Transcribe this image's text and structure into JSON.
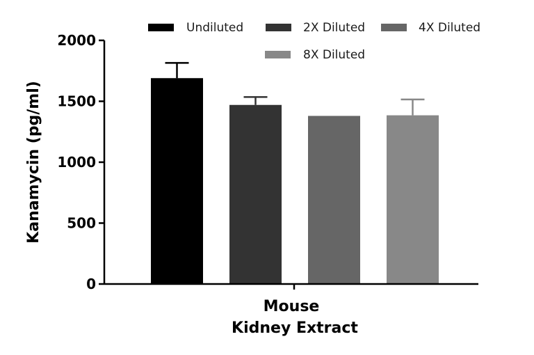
{
  "chart_data": {
    "type": "bar",
    "ylabel": "Kanamycin (pg/ml)",
    "xlabel_lines": [
      "Mouse",
      "Kidney Extract"
    ],
    "ylim": [
      0,
      2000
    ],
    "yticks": [
      0,
      500,
      1000,
      1500,
      2000
    ],
    "category": "Mouse Kidney Extract",
    "legend_position": "top",
    "series": [
      {
        "name": "Undiluted",
        "value": 1690,
        "error": 125,
        "color": "#000000"
      },
      {
        "name": "2X Diluted",
        "value": 1470,
        "error": 65,
        "color": "#333333"
      },
      {
        "name": "4X Diluted",
        "value": 1380,
        "error": 0,
        "color": "#666666"
      },
      {
        "name": "8X Diluted",
        "value": 1385,
        "error": 130,
        "color": "#888888"
      }
    ]
  }
}
